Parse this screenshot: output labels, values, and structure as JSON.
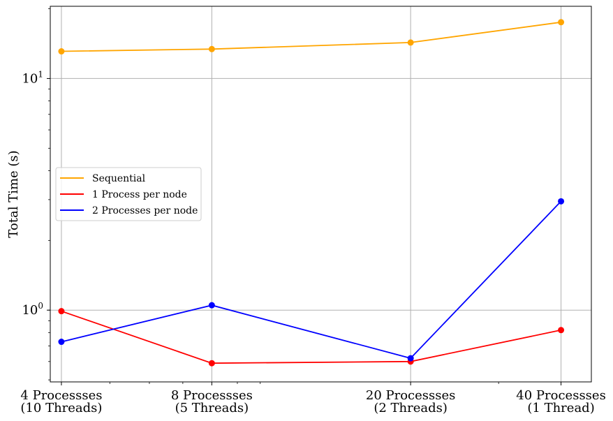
{
  "chart_data": {
    "type": "line",
    "title": "",
    "xlabel": "",
    "ylabel": "Total Time (s)",
    "yscale": "log",
    "ylim": [
      0.49,
      20.5
    ],
    "grid": true,
    "legend_position": "center-left",
    "x": [
      4,
      8,
      20,
      40
    ],
    "xscale": "log",
    "xlim": [
      3.8,
      46
    ],
    "categories": [
      [
        "4 Processses",
        "(10 Threads)"
      ],
      [
        "8 Processses",
        "(5 Threads)"
      ],
      [
        "20 Processses",
        "(2 Threads)"
      ],
      [
        "40 Processses",
        "(1 Thread)"
      ]
    ],
    "y_ticks": [
      {
        "value": 1,
        "base": "10",
        "exp": "0"
      },
      {
        "value": 10,
        "base": "10",
        "exp": "1"
      }
    ],
    "series": [
      {
        "name": "Sequential",
        "color": "#ffa500",
        "values": [
          13.1,
          13.4,
          14.3,
          17.5
        ]
      },
      {
        "name": "1 Process per node",
        "color": "#ff0000",
        "values": [
          0.99,
          0.59,
          0.6,
          0.82
        ]
      },
      {
        "name": "2 Processes per node",
        "color": "#0000ff",
        "values": [
          0.73,
          1.05,
          0.62,
          2.95
        ]
      }
    ]
  }
}
